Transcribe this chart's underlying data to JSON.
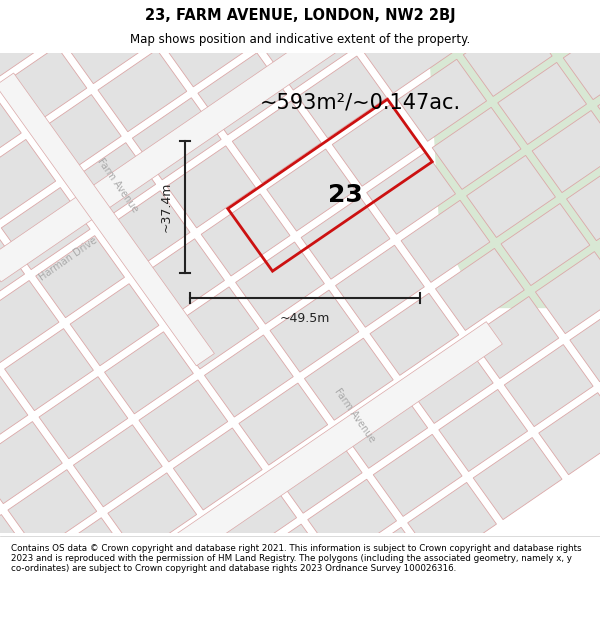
{
  "title_line1": "23, FARM AVENUE, LONDON, NW2 2BJ",
  "title_line2": "Map shows position and indicative extent of the property.",
  "area_text": "~593m²/~0.147ac.",
  "label_number": "23",
  "dim_height": "~37.4m",
  "dim_width": "~49.5m",
  "street_label_farm_upper": "Farm Avenue",
  "street_label_farm_lower": "Farm Avenue",
  "street_label_harman": "Harman Drive",
  "footer_text": "Contains OS data © Crown copyright and database right 2021. This information is subject to Crown copyright and database rights 2023 and is reproduced with the permission of HM Land Registry. The polygons (including the associated geometry, namely x, y co-ordinates) are subject to Crown copyright and database rights 2023 Ordnance Survey 100026316.",
  "map_bg": "#ebebeb",
  "parcel_fill": "#e2e2e2",
  "parcel_edge": "#dba8a8",
  "road_fill": "#f5f5f5",
  "road_edge": "#dba8a8",
  "green_color": "#d8e8d4",
  "plot_line_color": "#cc1111",
  "title_bg": "#ffffff",
  "footer_bg": "#ffffff",
  "dim_color": "#222222",
  "street_label_color": "#aaaaaa",
  "figsize": [
    6.0,
    6.25
  ],
  "dpi": 100
}
